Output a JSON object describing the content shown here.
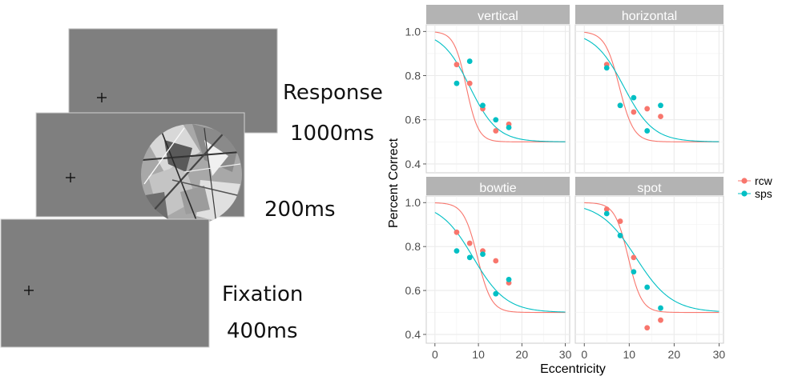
{
  "procedure": {
    "stages": [
      {
        "label": "Response",
        "duration": "1000ms"
      },
      {
        "label": "",
        "duration": "200ms"
      },
      {
        "label": "Fixation",
        "duration": "400ms"
      }
    ]
  },
  "chart_data": {
    "type": "scatter",
    "xlabel": "Eccentricity",
    "ylabel": "Percent Correct",
    "xlim": [
      -2,
      31
    ],
    "ylim": [
      0.36,
      1.03
    ],
    "xticks": [
      0,
      10,
      20,
      30
    ],
    "yticks": [
      0.4,
      0.6,
      0.8,
      1.0
    ],
    "ytick_labels": [
      "0.4",
      "0.6",
      "0.8",
      "1.0"
    ],
    "grid": true,
    "legend_position": "right",
    "legend": [
      {
        "name": "rcw",
        "color": "#F8766D"
      },
      {
        "name": "sps",
        "color": "#00BFC4"
      }
    ],
    "panels": [
      {
        "title": "vertical",
        "points": {
          "rcw": [
            [
              5,
              0.85
            ],
            [
              8,
              0.765
            ],
            [
              11,
              0.65
            ],
            [
              14,
              0.55
            ],
            [
              17,
              0.58
            ]
          ],
          "sps": [
            [
              5,
              0.765
            ],
            [
              8,
              0.865
            ],
            [
              11,
              0.665
            ],
            [
              14,
              0.6
            ],
            [
              17,
              0.565
            ]
          ]
        },
        "curves": {
          "rcw": {
            "x50": 7.2,
            "s": 1.4
          },
          "sps": {
            "x50": 8.0,
            "s": 3.2
          }
        }
      },
      {
        "title": "horizontal",
        "points": {
          "rcw": [
            [
              5,
              0.85
            ],
            [
              8,
              0.665
            ],
            [
              11,
              0.635
            ],
            [
              14,
              0.65
            ],
            [
              17,
              0.615
            ]
          ],
          "sps": [
            [
              5,
              0.835
            ],
            [
              8,
              0.665
            ],
            [
              11,
              0.7
            ],
            [
              14,
              0.55
            ],
            [
              17,
              0.665
            ]
          ]
        },
        "curves": {
          "rcw": {
            "x50": 7.8,
            "s": 1.6
          },
          "sps": {
            "x50": 8.8,
            "s": 3.3
          }
        }
      },
      {
        "title": "bowtie",
        "points": {
          "rcw": [
            [
              5,
              0.865
            ],
            [
              8,
              0.815
            ],
            [
              11,
              0.78
            ],
            [
              14,
              0.735
            ],
            [
              17,
              0.635
            ]
          ],
          "sps": [
            [
              5,
              0.78
            ],
            [
              8,
              0.75
            ],
            [
              11,
              0.765
            ],
            [
              14,
              0.585
            ],
            [
              17,
              0.65
            ]
          ]
        },
        "curves": {
          "rcw": {
            "x50": 9.8,
            "s": 1.6
          },
          "sps": {
            "x50": 8.8,
            "s": 3.8
          }
        }
      },
      {
        "title": "spot",
        "points": {
          "rcw": [
            [
              5,
              0.97
            ],
            [
              8,
              0.915
            ],
            [
              11,
              0.75
            ],
            [
              14,
              0.43
            ],
            [
              17,
              0.465
            ]
          ],
          "sps": [
            [
              5,
              0.95
            ],
            [
              8,
              0.85
            ],
            [
              11,
              0.685
            ],
            [
              14,
              0.615
            ],
            [
              17,
              0.52
            ]
          ]
        },
        "curves": {
          "rcw": {
            "x50": 9.8,
            "s": 1.5
          },
          "sps": {
            "x50": 11.5,
            "s": 4.0
          }
        }
      }
    ]
  }
}
